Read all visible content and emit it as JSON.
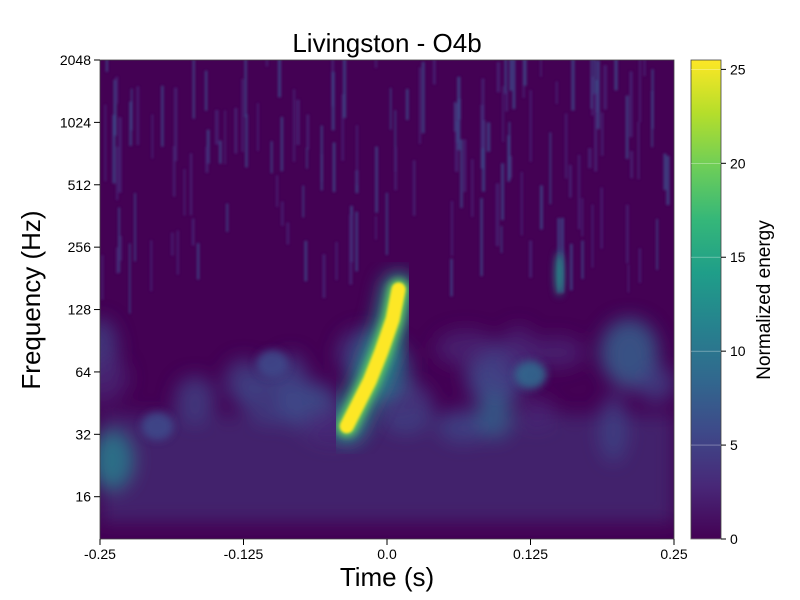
{
  "chart_data": {
    "type": "heatmap",
    "title": "Livingston - O4b",
    "xlabel": "Time (s)",
    "ylabel": "Frequency (Hz)",
    "colorbar_label": "Normalized energy",
    "colormap": "viridis",
    "xlim": [
      -0.25,
      0.25
    ],
    "ylim": [
      10,
      2048
    ],
    "yscale": "log2",
    "x_ticks": [
      -0.25,
      -0.125,
      0.0,
      0.125,
      0.25
    ],
    "x_tick_labels": [
      "-0.25",
      "-0.125",
      "0.0",
      "0.125",
      "0.25"
    ],
    "y_ticks": [
      16,
      32,
      64,
      128,
      256,
      512,
      1024,
      2048
    ],
    "y_tick_labels": [
      "16",
      "32",
      "64",
      "128",
      "256",
      "512",
      "1024",
      "2048"
    ],
    "color_range": [
      0,
      25.5
    ],
    "colorbar_ticks": [
      0,
      5,
      10,
      15,
      20,
      25
    ],
    "colorbar_tick_labels": [
      "0",
      "5",
      "10",
      "15",
      "20",
      "25"
    ],
    "chirp_track": [
      {
        "t": -0.035,
        "f": 35,
        "energy": 25.5
      },
      {
        "t": -0.025,
        "f": 45,
        "energy": 25.5
      },
      {
        "t": -0.015,
        "f": 58,
        "energy": 25.5
      },
      {
        "t": -0.005,
        "f": 80,
        "energy": 25.5
      },
      {
        "t": 0.005,
        "f": 115,
        "energy": 25.5
      },
      {
        "t": 0.01,
        "f": 160,
        "energy": 25.5
      }
    ],
    "other_features": [
      {
        "t": 0.15,
        "f": 190,
        "energy": 14
      },
      {
        "t": 0.125,
        "f": 62,
        "energy": 8
      },
      {
        "t": -0.1,
        "f": 70,
        "energy": 7
      },
      {
        "t": -0.2,
        "f": 35,
        "energy": 6
      }
    ],
    "colors": {
      "viridis": [
        "#440154",
        "#482878",
        "#3e4989",
        "#31688e",
        "#26828e",
        "#1f9e89",
        "#35b779",
        "#6ece58",
        "#b5de2b",
        "#fde725"
      ]
    }
  }
}
